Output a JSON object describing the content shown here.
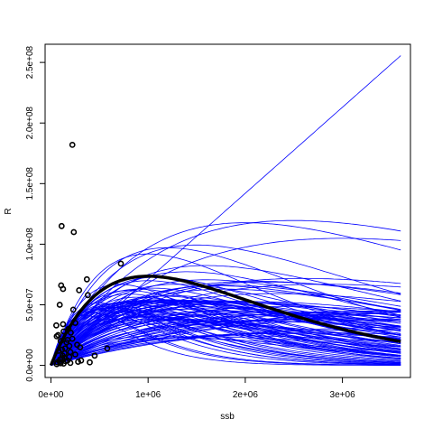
{
  "chart_data": {
    "type": "scatter",
    "title": "",
    "xlabel": "ssb",
    "ylabel": "R",
    "xlim": [
      -60000,
      3700000
    ],
    "ylim": [
      -10000000,
      265000000
    ],
    "x_ticks": [
      0,
      1000000,
      2000000,
      3000000
    ],
    "x_tick_labels": [
      "0e+00",
      "1e+06",
      "2e+06",
      "3e+06"
    ],
    "y_ticks": [
      0,
      50000000,
      100000000,
      150000000,
      200000000,
      250000000
    ],
    "y_tick_labels": [
      "0.0e+00",
      "5.0e+07",
      "1.0e+08",
      "1.5e+08",
      "2.0e+08",
      "2.5e+08"
    ],
    "grid": false,
    "colors": {
      "curves": "#0000ff",
      "points": "#000000",
      "fit": "#000000"
    },
    "observations": {
      "x": [
        220000,
        110000,
        235000,
        720000,
        370000,
        105000,
        290000,
        125000,
        380000,
        90000,
        230000,
        55000,
        125000,
        250000,
        180000,
        75000,
        130000,
        205000,
        220000,
        60000,
        100000,
        160000,
        270000,
        190000,
        300000,
        145000,
        115000,
        80000,
        200000,
        140000,
        580000,
        250000,
        450000,
        190000,
        115000,
        95000,
        310000,
        150000,
        280000,
        65000,
        200000,
        100000,
        130000,
        400000,
        120000,
        140000,
        170000,
        90000,
        60000,
        170000
      ],
      "y": [
        182000000,
        115000000,
        110000000,
        84000000,
        71000000,
        66000000,
        62000000,
        63000000,
        58000000,
        50000000,
        46000000,
        33000000,
        34000000,
        35000000,
        30000000,
        25000000,
        28000000,
        27000000,
        22000000,
        24000000,
        20000000,
        19000000,
        17000000,
        16000000,
        15000000,
        14000000,
        13000000,
        12000000,
        11000000,
        10000000,
        14000000,
        9000000,
        8000000,
        7000000,
        6000000,
        5000000,
        4000000,
        3500000,
        3000000,
        2500000,
        2000000,
        1800000,
        1500000,
        2500000,
        8000000,
        6000000,
        4000000,
        3000000,
        1000000,
        21000000
      ]
    },
    "fit_curve": {
      "a": 200,
      "b": 1000000,
      "xmax": 3600000
    },
    "ensemble_curves": {
      "xmax": 3600000,
      "params": [
        [
          71,
          0
        ],
        [
          300,
          400000
        ],
        [
          150,
          900000
        ],
        [
          180,
          1500000
        ],
        [
          120,
          1200000
        ],
        [
          95,
          1800000
        ],
        [
          160,
          2000000
        ],
        [
          110,
          1000000
        ],
        [
          140,
          1600000
        ],
        [
          90,
          1400000
        ],
        [
          130,
          2500000
        ],
        [
          75,
          2600000
        ],
        [
          105,
          1700000
        ],
        [
          85,
          2200000
        ],
        [
          170,
          900000
        ],
        [
          65,
          2800000
        ],
        [
          60,
          1900000
        ],
        [
          80,
          1300000
        ],
        [
          55,
          2400000
        ],
        [
          95,
          3000000
        ],
        [
          250,
          1000000
        ],
        [
          200,
          800000
        ],
        [
          220,
          1200000
        ],
        [
          150,
          1400000
        ],
        [
          120,
          1600000
        ],
        [
          100,
          1800000
        ],
        [
          180,
          1100000
        ],
        [
          140,
          1300000
        ],
        [
          90,
          2100000
        ],
        [
          70,
          2300000
        ],
        [
          260,
          700000
        ],
        [
          230,
          600000
        ],
        [
          210,
          800000
        ],
        [
          190,
          900000
        ],
        [
          175,
          750000
        ],
        [
          160,
          650000
        ],
        [
          145,
          850000
        ],
        [
          130,
          950000
        ],
        [
          115,
          1050000
        ],
        [
          100,
          1150000
        ],
        [
          280,
          500000
        ],
        [
          240,
          550000
        ],
        [
          200,
          650000
        ],
        [
          170,
          700000
        ],
        [
          150,
          800000
        ],
        [
          135,
          850000
        ],
        [
          120,
          900000
        ],
        [
          110,
          1000000
        ],
        [
          95,
          1100000
        ],
        [
          85,
          1200000
        ],
        [
          75,
          1350000
        ],
        [
          65,
          1500000
        ],
        [
          55,
          1650000
        ],
        [
          50,
          2000000
        ],
        [
          45,
          2200000
        ],
        [
          40,
          2600000
        ],
        [
          35,
          3000000
        ],
        [
          30,
          3400000
        ],
        [
          190,
          1000000
        ],
        [
          165,
          1050000
        ],
        [
          135,
          1150000
        ],
        [
          125,
          1250000
        ],
        [
          105,
          1350000
        ],
        [
          95,
          1450000
        ],
        [
          85,
          1550000
        ],
        [
          78,
          1650000
        ],
        [
          70,
          1750000
        ],
        [
          64,
          1900000
        ],
        [
          58,
          2050000
        ],
        [
          52,
          2300000
        ],
        [
          46,
          2500000
        ],
        [
          42,
          2800000
        ],
        [
          38,
          3200000
        ],
        [
          34,
          3600000
        ],
        [
          30,
          4000000
        ],
        [
          28,
          4500000
        ],
        [
          25,
          5000000
        ],
        [
          60,
          1100000
        ],
        [
          48,
          1300000
        ],
        [
          40,
          1600000
        ],
        [
          35,
          1900000
        ],
        [
          31,
          2300000
        ],
        [
          27,
          2700000
        ],
        [
          24,
          3300000
        ],
        [
          22,
          3900000
        ],
        [
          320,
          350000
        ],
        [
          280,
          420000
        ],
        [
          260,
          480000
        ],
        [
          240,
          520000
        ],
        [
          220,
          580000
        ],
        [
          210,
          620000
        ],
        [
          200,
          700000
        ],
        [
          185,
          760000
        ],
        [
          175,
          820000
        ],
        [
          165,
          880000
        ],
        [
          155,
          930000
        ],
        [
          145,
          990000
        ],
        [
          140,
          1050000
        ],
        [
          130,
          1100000
        ],
        [
          125,
          1180000
        ],
        [
          118,
          1240000
        ],
        [
          112,
          1300000
        ],
        [
          106,
          1380000
        ],
        [
          100,
          1450000
        ],
        [
          92,
          1550000
        ],
        [
          88,
          1650000
        ],
        [
          82,
          1750000
        ],
        [
          78,
          1850000
        ],
        [
          72,
          1950000
        ],
        [
          68,
          2100000
        ]
      ]
    }
  }
}
